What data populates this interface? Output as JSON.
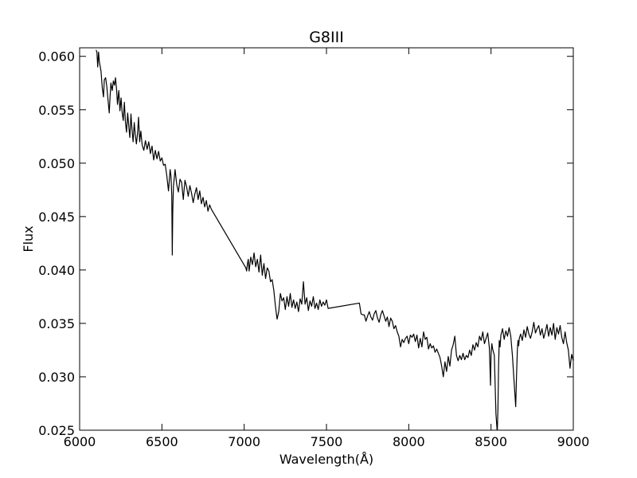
{
  "chart_data": {
    "type": "line",
    "title": "G8III",
    "xlabel": "Wavelength(Å)",
    "ylabel": "Flux",
    "xlim": [
      6000,
      9000
    ],
    "ylim": [
      0.025,
      0.0608
    ],
    "x_ticks": [
      6000,
      6500,
      7000,
      7500,
      8000,
      8500,
      9000
    ],
    "x_tick_labels": [
      "6000",
      "6500",
      "7000",
      "7500",
      "8000",
      "8500",
      "9000"
    ],
    "y_ticks": [
      0.025,
      0.03,
      0.035,
      0.04,
      0.045,
      0.05,
      0.055,
      0.06
    ],
    "y_tick_labels": [
      "0.025",
      "0.030",
      "0.035",
      "0.040",
      "0.045",
      "0.050",
      "0.055",
      "0.060"
    ],
    "grid": false,
    "legend": "none",
    "line_color": "#000000",
    "series": [
      {
        "x": [
          6100,
          6105,
          6110,
          6115,
          6120,
          6130,
          6138,
          6145,
          6150,
          6158,
          6165,
          6172,
          6180,
          6185,
          6190,
          6198,
          6205,
          6212,
          6218,
          6225,
          6230,
          6238,
          6245,
          6252,
          6258,
          6265,
          6272,
          6278,
          6285,
          6292,
          6298,
          6305,
          6312,
          6318,
          6325,
          6332,
          6338,
          6345,
          6352,
          6358,
          6365,
          6372,
          6380,
          6390,
          6400,
          6410,
          6420,
          6430,
          6440,
          6450,
          6460,
          6470,
          6480,
          6490,
          6500,
          6510,
          6520,
          6530,
          6540,
          6550,
          6555,
          6560,
          6563,
          6566,
          6570,
          6580,
          6590,
          6600,
          6610,
          6620,
          6630,
          6640,
          6650,
          6660,
          6670,
          6680,
          6690,
          6700,
          6710,
          6720,
          6730,
          6740,
          6750,
          6760,
          6770,
          6780,
          6790,
          6800,
          7010,
          7015,
          7020,
          7025,
          7030,
          7040,
          7050,
          7060,
          7070,
          7080,
          7090,
          7100,
          7110,
          7120,
          7130,
          7140,
          7150,
          7160,
          7170,
          7180,
          7190,
          7200,
          7210,
          7220,
          7230,
          7240,
          7250,
          7260,
          7270,
          7280,
          7290,
          7300,
          7310,
          7320,
          7330,
          7340,
          7350,
          7360,
          7370,
          7380,
          7390,
          7400,
          7410,
          7420,
          7430,
          7440,
          7450,
          7460,
          7470,
          7480,
          7490,
          7500,
          7510,
          7700,
          7710,
          7720,
          7730,
          7740,
          7750,
          7760,
          7770,
          7780,
          7790,
          7800,
          7810,
          7820,
          7830,
          7840,
          7850,
          7860,
          7870,
          7880,
          7890,
          7900,
          7910,
          7920,
          7930,
          7940,
          7950,
          7960,
          7970,
          7980,
          7990,
          8000,
          8010,
          8020,
          8030,
          8040,
          8050,
          8060,
          8070,
          8080,
          8090,
          8100,
          8110,
          8120,
          8130,
          8140,
          8150,
          8160,
          8170,
          8180,
          8190,
          8200,
          8210,
          8220,
          8230,
          8240,
          8250,
          8260,
          8270,
          8280,
          8290,
          8300,
          8310,
          8320,
          8330,
          8340,
          8350,
          8360,
          8370,
          8380,
          8390,
          8400,
          8410,
          8420,
          8430,
          8440,
          8450,
          8460,
          8470,
          8480,
          8490,
          8497,
          8500,
          8505,
          8510,
          8520,
          8530,
          8538,
          8542,
          8546,
          8550,
          8555,
          8560,
          8570,
          8580,
          8590,
          8600,
          8610,
          8620,
          8630,
          8640,
          8650,
          8655,
          8660,
          8664,
          8668,
          8672,
          8680,
          8690,
          8700,
          8710,
          8720,
          8730,
          8740,
          8750,
          8760,
          8770,
          8780,
          8790,
          8800,
          8810,
          8820,
          8830,
          8840,
          8850,
          8860,
          8870,
          8880,
          8890,
          8900,
          8910,
          8920,
          8930,
          8940,
          8950,
          8960,
          8970,
          8980,
          8990,
          9000
        ],
        "y": [
          0.0606,
          0.0604,
          0.059,
          0.0604,
          0.0595,
          0.0586,
          0.057,
          0.0562,
          0.0578,
          0.058,
          0.0572,
          0.056,
          0.0547,
          0.0562,
          0.0575,
          0.0568,
          0.0577,
          0.0573,
          0.058,
          0.0568,
          0.0555,
          0.0568,
          0.0549,
          0.0561,
          0.0548,
          0.054,
          0.0557,
          0.0539,
          0.0529,
          0.0547,
          0.0536,
          0.0524,
          0.0546,
          0.0532,
          0.052,
          0.0538,
          0.0527,
          0.0518,
          0.0528,
          0.0543,
          0.052,
          0.053,
          0.0517,
          0.0512,
          0.0521,
          0.0513,
          0.052,
          0.0509,
          0.0516,
          0.0503,
          0.0512,
          0.0504,
          0.0511,
          0.0502,
          0.0505,
          0.0498,
          0.0499,
          0.0488,
          0.0474,
          0.0494,
          0.0488,
          0.047,
          0.0414,
          0.0455,
          0.0478,
          0.0494,
          0.048,
          0.0473,
          0.0485,
          0.0482,
          0.0466,
          0.0484,
          0.0478,
          0.0469,
          0.0479,
          0.0472,
          0.0463,
          0.0471,
          0.0477,
          0.0466,
          0.0474,
          0.0462,
          0.0468,
          0.0459,
          0.0465,
          0.0455,
          0.0461,
          0.0457,
          0.0402,
          0.0399,
          0.0406,
          0.041,
          0.0399,
          0.0412,
          0.0405,
          0.0416,
          0.0403,
          0.041,
          0.0398,
          0.0414,
          0.0395,
          0.0406,
          0.0392,
          0.0402,
          0.0399,
          0.0389,
          0.0391,
          0.0381,
          0.0366,
          0.0354,
          0.0361,
          0.0378,
          0.0371,
          0.0374,
          0.0363,
          0.0375,
          0.0366,
          0.0378,
          0.0365,
          0.0372,
          0.0364,
          0.037,
          0.0361,
          0.0373,
          0.0368,
          0.0389,
          0.0368,
          0.0374,
          0.0362,
          0.0371,
          0.0366,
          0.0375,
          0.0364,
          0.0369,
          0.0363,
          0.0372,
          0.0366,
          0.037,
          0.0367,
          0.0372,
          0.0364,
          0.0369,
          0.0359,
          0.0358,
          0.0358,
          0.0352,
          0.0357,
          0.0361,
          0.0356,
          0.0353,
          0.0359,
          0.0362,
          0.0355,
          0.0351,
          0.0358,
          0.0362,
          0.0357,
          0.0352,
          0.0356,
          0.0347,
          0.0355,
          0.0352,
          0.0345,
          0.0348,
          0.0342,
          0.0338,
          0.0328,
          0.0335,
          0.0332,
          0.0336,
          0.0338,
          0.0331,
          0.0339,
          0.0337,
          0.034,
          0.0333,
          0.0339,
          0.0327,
          0.0336,
          0.0328,
          0.0342,
          0.0335,
          0.0337,
          0.0326,
          0.0331,
          0.0327,
          0.0329,
          0.0323,
          0.0326,
          0.0322,
          0.0318,
          0.031,
          0.03,
          0.0314,
          0.0305,
          0.0319,
          0.031,
          0.0325,
          0.033,
          0.0338,
          0.032,
          0.0315,
          0.032,
          0.0316,
          0.0322,
          0.0316,
          0.032,
          0.0318,
          0.0325,
          0.032,
          0.033,
          0.0325,
          0.0332,
          0.0328,
          0.0338,
          0.0334,
          0.0342,
          0.0331,
          0.0336,
          0.0341,
          0.0327,
          0.0292,
          0.032,
          0.0331,
          0.0326,
          0.032,
          0.0265,
          0.0248,
          0.027,
          0.031,
          0.0334,
          0.0328,
          0.0339,
          0.0345,
          0.0335,
          0.0343,
          0.0338,
          0.0346,
          0.0338,
          0.032,
          0.0296,
          0.0272,
          0.0301,
          0.0325,
          0.0334,
          0.0329,
          0.0336,
          0.034,
          0.0334,
          0.0344,
          0.0337,
          0.0347,
          0.034,
          0.0336,
          0.0342,
          0.0351,
          0.0341,
          0.0345,
          0.0348,
          0.0339,
          0.0345,
          0.0336,
          0.0342,
          0.0349,
          0.0338,
          0.0346,
          0.0339,
          0.035,
          0.0335,
          0.0346,
          0.034,
          0.0348,
          0.0337,
          0.0331,
          0.0342,
          0.0332,
          0.0325,
          0.0308,
          0.0321,
          0.0315
        ]
      }
    ]
  }
}
